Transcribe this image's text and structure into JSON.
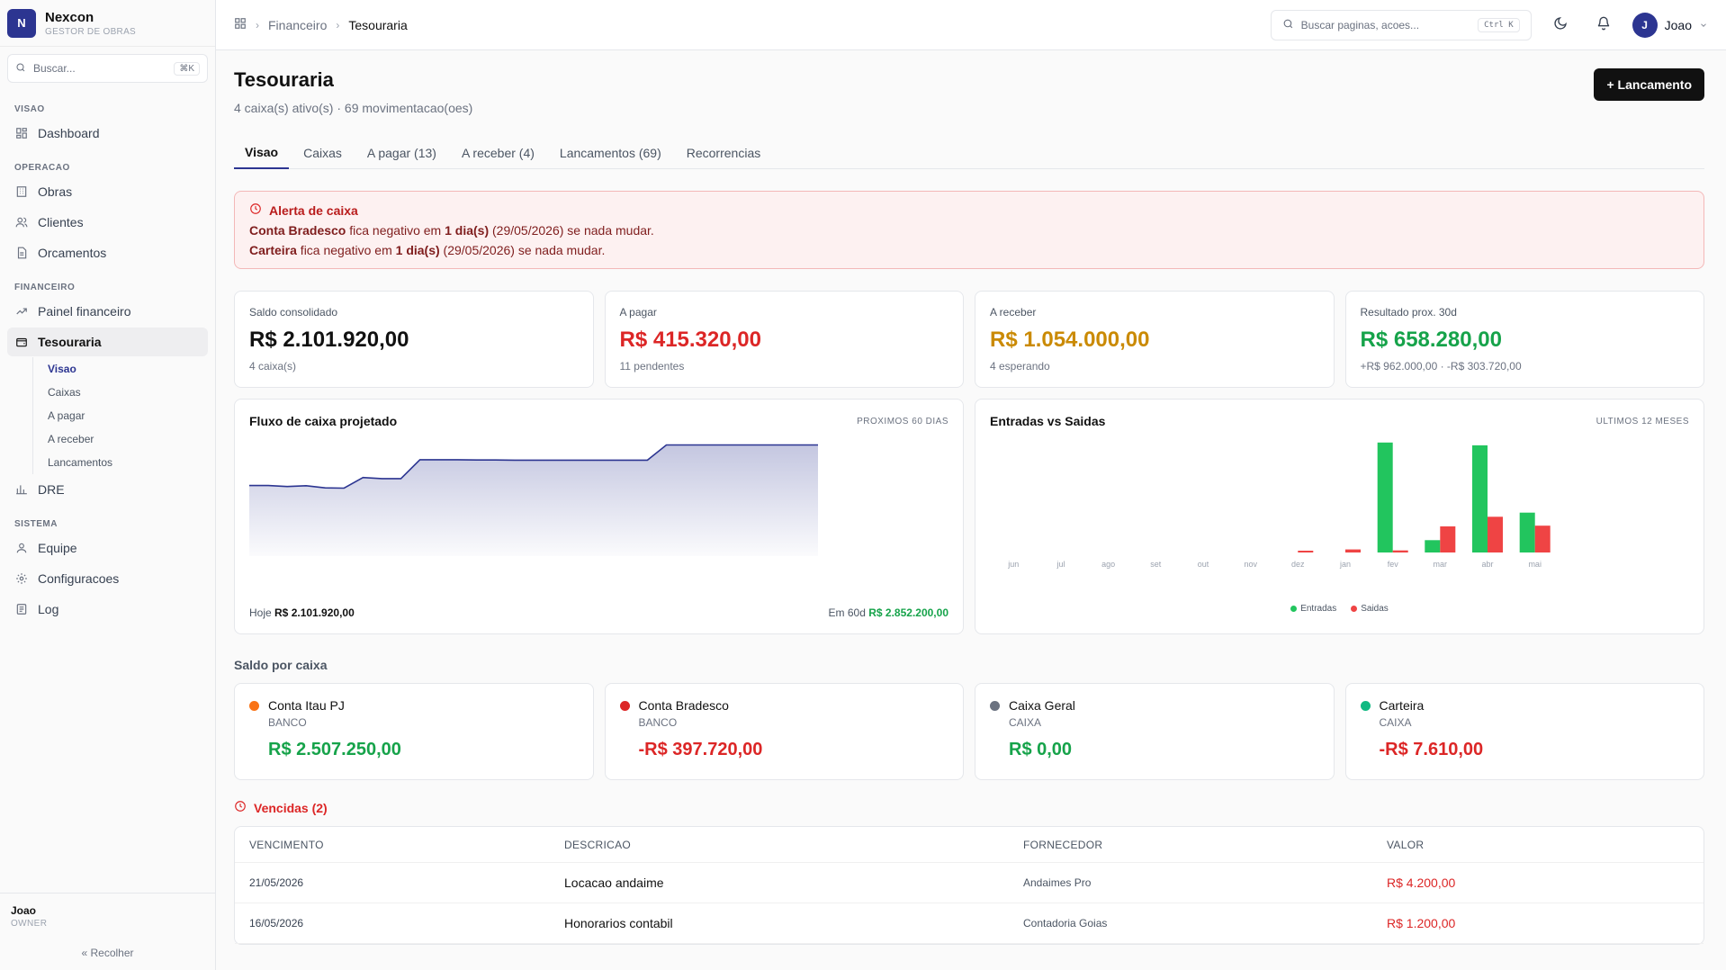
{
  "brand": {
    "logo_letter": "N",
    "name": "Nexcon",
    "subtitle": "GESTOR DE OBRAS"
  },
  "sidebar": {
    "search_placeholder": "Buscar...",
    "search_kbd": "⌘K",
    "sections": {
      "visao": "VISAO",
      "operacao": "OPERACAO",
      "financeiro": "FINANCEIRO",
      "sistema": "SISTEMA"
    },
    "items": {
      "dashboard": "Dashboard",
      "obras": "Obras",
      "clientes": "Clientes",
      "orcamentos": "Orcamentos",
      "painel": "Painel financeiro",
      "tesouraria": "Tesouraria",
      "dre": "DRE",
      "equipe": "Equipe",
      "config": "Configuracoes",
      "log": "Log"
    },
    "subitems": [
      "Visao",
      "Caixas",
      "A pagar",
      "A receber",
      "Lancamentos"
    ],
    "user": "Joao",
    "role": "OWNER",
    "collapse": "Recolher"
  },
  "topbar": {
    "breadcrumb": [
      "Financeiro",
      "Tesouraria"
    ],
    "search_placeholder": "Buscar paginas, acoes...",
    "search_kbd": "Ctrl K",
    "user_initial": "J",
    "user_name": "Joao"
  },
  "page": {
    "title": "Tesouraria",
    "subtitle": "4 caixa(s) ativo(s) · 69 movimentacao(oes)",
    "primary_action": "+ Lancamento"
  },
  "tabs": [
    "Visao",
    "Caixas",
    "A pagar (13)",
    "A receber (4)",
    "Lancamentos (69)",
    "Recorrencias"
  ],
  "alert": {
    "title": "Alerta de caixa",
    "lines": [
      {
        "account": "Conta Bradesco",
        "mid": " fica negativo em ",
        "days": "1 dia(s)",
        "end": " (29/05/2026) se nada mudar."
      },
      {
        "account": "Carteira",
        "mid": " fica negativo em ",
        "days": "1 dia(s)",
        "end": " (29/05/2026) se nada mudar."
      }
    ]
  },
  "kpis": [
    {
      "label": "Saldo consolidado",
      "value": "R$ 2.101.920,00",
      "sub": "4 caixa(s)",
      "color": "#111111"
    },
    {
      "label": "A pagar",
      "value": "R$ 415.320,00",
      "sub": "11 pendentes",
      "color": "#dc2626"
    },
    {
      "label": "A receber",
      "value": "R$ 1.054.000,00",
      "sub": "4 esperando",
      "color": "#ca8a04"
    },
    {
      "label": "Resultado prox. 30d",
      "value": "R$ 658.280,00",
      "sub": "+R$ 962.000,00 · -R$ 303.720,00",
      "color": "#16a34a"
    }
  ],
  "cashflow": {
    "title": "Fluxo de caixa projetado",
    "tag": "PROXIMOS 60 DIAS",
    "foot_left_label": "Hoje ",
    "foot_left_value": "R$ 2.101.920,00",
    "foot_right_label": "Em 60d ",
    "foot_right_value": "R$ 2.852.200,00"
  },
  "chart_data": [
    {
      "type": "area",
      "title": "Fluxo de caixa projetado",
      "x": [
        0,
        2,
        4,
        6,
        8,
        10,
        12,
        14,
        16,
        18,
        20,
        22,
        24,
        26,
        28,
        30,
        32,
        34,
        36,
        38,
        40,
        42,
        44,
        46,
        48,
        50,
        52,
        54,
        56,
        58,
        60
      ],
      "values": [
        2101920,
        2101920,
        2085000,
        2100000,
        2060000,
        2055000,
        2250000,
        2230000,
        2230000,
        2580000,
        2580000,
        2580000,
        2575000,
        2575000,
        2572000,
        2572000,
        2572000,
        2572000,
        2572000,
        2572000,
        2572000,
        2572000,
        2852200,
        2852200,
        2852200,
        2852200,
        2852200,
        2852200,
        2852200,
        2852200,
        2852200
      ],
      "ylim": [
        800000,
        2960000
      ],
      "color": "#2c3591"
    },
    {
      "type": "bar",
      "title": "Entradas vs Saidas",
      "tag": "ULTIMOS 12 MESES",
      "categories": [
        "jun",
        "jul",
        "ago",
        "set",
        "out",
        "nov",
        "dez",
        "jan",
        "fev",
        "mar",
        "abr",
        "mai"
      ],
      "series": [
        {
          "name": "Entradas",
          "color": "#22c55e",
          "values": [
            0,
            0,
            0,
            0,
            0,
            0,
            0,
            0,
            1600000,
            180000,
            1560000,
            580000
          ]
        },
        {
          "name": "Saidas",
          "color": "#ef4444",
          "values": [
            0,
            0,
            0,
            0,
            0,
            0,
            15000,
            45000,
            30000,
            380000,
            520000,
            390000
          ]
        }
      ],
      "ylim": [
        0,
        1650000
      ]
    }
  ],
  "saldo_por_caixa": {
    "title": "Saldo por caixa",
    "accounts": [
      {
        "name": "Conta Itau PJ",
        "type": "BANCO",
        "value": "R$ 2.507.250,00",
        "dot": "#f97316",
        "value_color": "#16a34a"
      },
      {
        "name": "Conta Bradesco",
        "type": "BANCO",
        "value": "-R$ 397.720,00",
        "dot": "#dc2626",
        "value_color": "#dc2626"
      },
      {
        "name": "Caixa Geral",
        "type": "CAIXA",
        "value": "R$ 0,00",
        "dot": "#6b7280",
        "value_color": "#16a34a"
      },
      {
        "name": "Carteira",
        "type": "CAIXA",
        "value": "-R$ 7.610,00",
        "dot": "#10b981",
        "value_color": "#dc2626"
      }
    ]
  },
  "vencidas": {
    "title": "Vencidas (2)",
    "columns": [
      "VENCIMENTO",
      "DESCRICAO",
      "FORNECEDOR",
      "VALOR"
    ],
    "rows": [
      {
        "vencimento": "21/05/2026",
        "descricao": "Locacao andaime",
        "fornecedor": "Andaimes Pro",
        "valor": "R$ 4.200,00"
      },
      {
        "vencimento": "16/05/2026",
        "descricao": "Honorarios contabil",
        "fornecedor": "Contadoria Goias",
        "valor": "R$ 1.200,00"
      }
    ]
  }
}
